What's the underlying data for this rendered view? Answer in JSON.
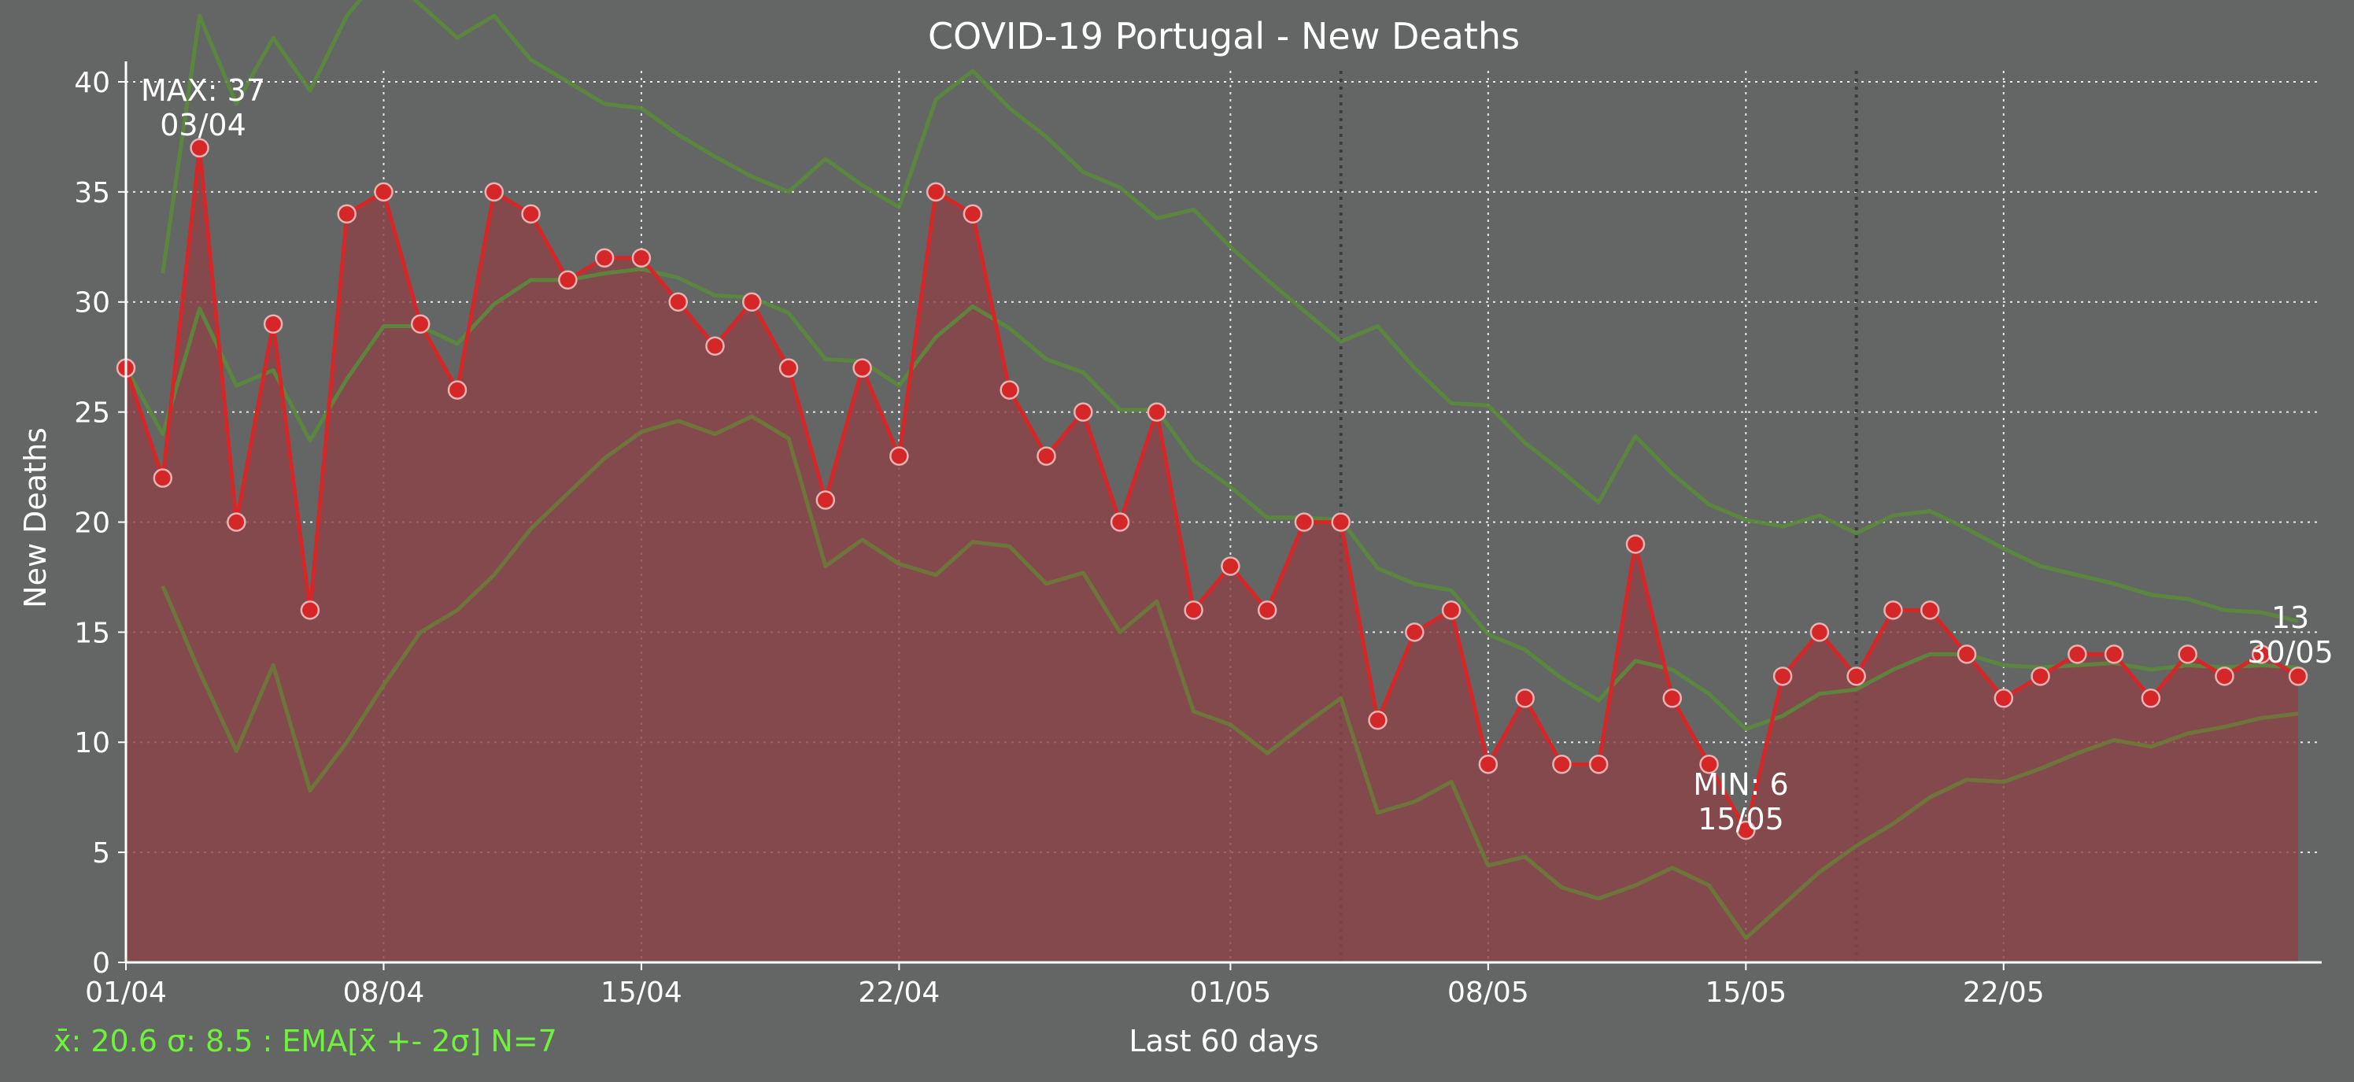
{
  "chart_data": {
    "type": "line",
    "title": "COVID-19 Portugal - New Deaths",
    "xlabel": "Last 60 days",
    "ylabel": "New Deaths",
    "ylim": [
      0,
      40.5
    ],
    "yticks": [
      0,
      5,
      10,
      15,
      20,
      25,
      30,
      35,
      40
    ],
    "x_tick_labels": [
      "01/04",
      "08/04",
      "15/04",
      "22/04",
      "01/05",
      "08/05",
      "15/05",
      "22/05"
    ],
    "x_tick_index": [
      0,
      7,
      14,
      21,
      30,
      37,
      44,
      51
    ],
    "vlines_index": [
      33,
      47
    ],
    "grid": true,
    "x": [
      "01/04",
      "02/04",
      "03/04",
      "04/04",
      "05/04",
      "06/04",
      "07/04",
      "08/04",
      "09/04",
      "10/04",
      "11/04",
      "12/04",
      "13/04",
      "14/04",
      "15/04",
      "16/04",
      "17/04",
      "18/04",
      "19/04",
      "20/04",
      "21/04",
      "22/04",
      "23/04",
      "24/04",
      "25/04",
      "26/04",
      "27/04",
      "28/04",
      "29/04",
      "30/04",
      "01/05",
      "02/05",
      "03/05",
      "04/05",
      "05/05",
      "06/05",
      "07/05",
      "08/05",
      "09/05",
      "10/05",
      "11/05",
      "12/05",
      "13/05",
      "14/05",
      "15/05",
      "16/05",
      "17/05",
      "18/05",
      "19/05",
      "20/05",
      "21/05",
      "22/05",
      "23/05",
      "24/05",
      "25/05",
      "26/05",
      "27/05",
      "28/05",
      "29/05",
      "30/05"
    ],
    "series": [
      {
        "name": "",
        "color": "#d62728",
        "values": [
          27,
          22,
          37,
          20,
          29,
          16,
          34,
          35,
          29,
          26,
          35,
          34,
          31,
          32,
          32,
          30,
          28,
          30,
          27,
          21,
          27,
          23,
          35,
          34,
          26,
          23,
          25,
          20,
          25,
          16,
          18,
          16,
          20,
          20,
          11,
          15,
          16,
          9,
          12,
          9,
          9,
          19,
          12,
          9,
          6,
          13,
          15,
          13,
          16,
          16,
          14,
          12,
          13,
          14,
          14,
          12,
          14,
          13,
          14,
          13
        ]
      },
      {
        "name": "",
        "color": "#5a8a3c",
        "values": [
          27,
          24,
          29.7,
          26.2,
          26.9,
          23.7,
          26.5,
          28.9,
          28.9,
          28.1,
          29.9,
          31,
          31,
          31.3,
          31.5,
          31.1,
          30.3,
          30.2,
          29.5,
          27.4,
          27.3,
          26.2,
          28.4,
          29.8,
          28.8,
          27.4,
          26.8,
          25.1,
          25.1,
          22.8,
          21.6,
          20.2,
          20.2,
          20.1,
          17.9,
          17.2,
          16.9,
          14.9,
          14.2,
          12.9,
          11.9,
          13.7,
          13.3,
          12.2,
          10.6,
          11.2,
          12.2,
          12.4,
          13.3,
          14,
          14,
          13.5,
          13.4,
          13.5,
          13.6,
          13.3,
          13.5,
          13.4,
          13.5,
          13.4
        ]
      },
      {
        "name": "",
        "color": "#5a8a3c",
        "values": [
          null,
          31.3,
          43,
          39,
          42,
          39.6,
          43,
          45,
          43.5,
          42,
          43,
          41,
          40,
          39,
          38.8,
          37.6,
          36.6,
          35.7,
          35,
          36.5,
          35.3,
          34.3,
          39.2,
          40.5,
          38.8,
          37.5,
          35.9,
          35.2,
          33.8,
          34.2,
          32.5,
          31,
          29.6,
          28.2,
          28.9,
          27,
          25.4,
          25.3,
          23.6,
          22.3,
          20.9,
          23.9,
          22.2,
          20.8,
          20.1,
          19.8,
          20.3,
          19.5,
          20.3,
          20.5,
          19.7,
          18.8,
          18,
          17.6,
          17.2,
          16.7,
          16.5,
          16,
          15.9,
          15.5
        ]
      },
      {
        "name": "",
        "color": "#6b7a3a",
        "values": [
          null,
          17.1,
          13.2,
          9.6,
          13.5,
          7.8,
          10,
          12.6,
          15,
          16,
          17.6,
          19.7,
          21.3,
          22.9,
          24.1,
          24.6,
          24,
          24.8,
          23.8,
          18,
          19.2,
          18.1,
          17.6,
          19.1,
          18.9,
          17.2,
          17.7,
          15,
          16.4,
          11.4,
          10.8,
          9.5,
          10.8,
          12,
          6.8,
          7.3,
          8.2,
          4.4,
          4.8,
          3.4,
          2.9,
          3.5,
          4.3,
          3.5,
          1.1,
          2.6,
          4.1,
          5.3,
          6.3,
          7.5,
          8.3,
          8.2,
          8.8,
          9.5,
          10.1,
          9.8,
          10.4,
          10.7,
          11.1,
          11.3
        ]
      }
    ],
    "annotations": {
      "max": {
        "label": "MAX: 37",
        "date": "03/04"
      },
      "min": {
        "label": "MIN: 6",
        "date": "15/05"
      },
      "last": {
        "label": "13",
        "date": "30/05"
      }
    },
    "stats_text": "x̄: 20.6 σ: 8.5 : EMA[x̄ +- 2σ] N=7"
  }
}
